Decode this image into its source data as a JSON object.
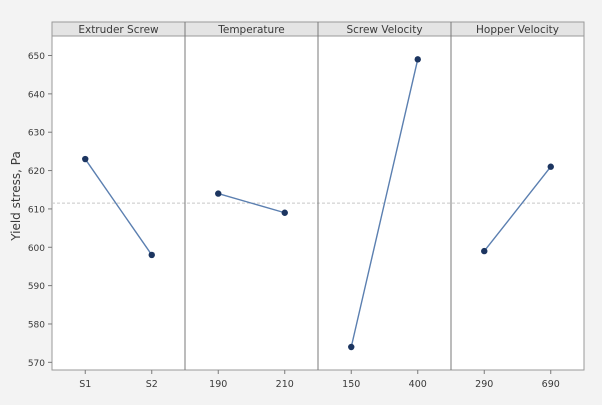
{
  "chart_data": {
    "type": "line",
    "ylabel": "Yield stress, Pa",
    "ylim": [
      568,
      653
    ],
    "yticks": [
      570,
      580,
      590,
      600,
      610,
      620,
      630,
      640,
      650
    ],
    "reference_y": 611.5,
    "colors": {
      "line": "#5b7fb0",
      "marker": "#1c3560",
      "reference": "#c8c8c8",
      "panel": "#ffffff",
      "header": "#e4e4e4"
    },
    "panels": [
      {
        "title": "Extruder Screw",
        "categories": [
          "S1",
          "S2"
        ],
        "values": [
          623,
          598
        ]
      },
      {
        "title": "Temperature",
        "categories": [
          "190",
          "210"
        ],
        "values": [
          614,
          609
        ]
      },
      {
        "title": "Screw Velocity",
        "categories": [
          "150",
          "400"
        ],
        "values": [
          574,
          649
        ]
      },
      {
        "title": "Hopper Velocity",
        "categories": [
          "290",
          "690"
        ],
        "values": [
          599,
          621
        ]
      }
    ]
  }
}
